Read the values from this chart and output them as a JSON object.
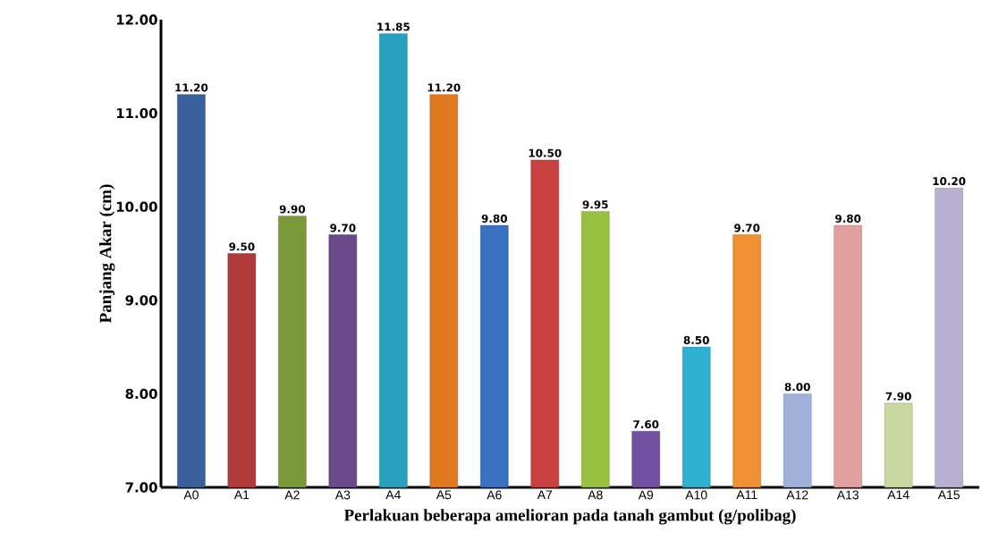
{
  "chart_data": {
    "type": "bar",
    "xlabel": "Perlakuan beberapa amelioran pada tanah gambut (g/polibag)",
    "ylabel": "Panjang Akar (cm)",
    "categories": [
      "A0",
      "A1",
      "A2",
      "A3",
      "A4",
      "A5",
      "A6",
      "A7",
      "A8",
      "A9",
      "A10",
      "A11",
      "A12",
      "A13",
      "A14",
      "A15"
    ],
    "values": [
      11.2,
      9.5,
      9.9,
      9.7,
      11.85,
      11.2,
      9.8,
      10.5,
      9.95,
      7.6,
      8.5,
      9.7,
      8.0,
      9.8,
      7.9,
      10.2
    ],
    "value_labels": [
      "11.20",
      "9.50",
      "9.90",
      "9.70",
      "11.85",
      "11.20",
      "9.80",
      "10.50",
      "9.95",
      "7.60",
      "8.50",
      "9.70",
      "8.00",
      "9.80",
      "7.90",
      "10.20"
    ],
    "colors": [
      "#3a5f9a",
      "#b03a3a",
      "#7a9a3a",
      "#6a4a8a",
      "#2aa0c0",
      "#e07a20",
      "#3a70c0",
      "#c84040",
      "#98c040",
      "#7050a0",
      "#30b0d0",
      "#f09030",
      "#a0b0d8",
      "#e0a0a0",
      "#c8d8a0",
      "#b8b0d0"
    ],
    "ylim": [
      7,
      12
    ],
    "yticks": [
      {
        "value": 7,
        "label": "7.00"
      },
      {
        "value": 8,
        "label": "8.00"
      },
      {
        "value": 9,
        "label": "9.00"
      },
      {
        "value": 10,
        "label": "10.00"
      },
      {
        "value": 11,
        "label": "11.00"
      },
      {
        "value": 12,
        "label": "12.00"
      }
    ],
    "grid": false
  }
}
